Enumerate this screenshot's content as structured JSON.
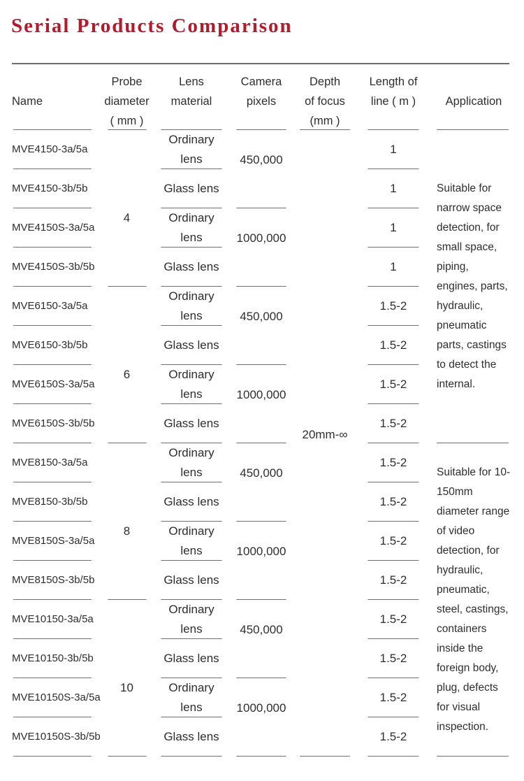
{
  "page": {
    "title": "Serial Products Comparison"
  },
  "colors": {
    "accent": "#b01c2c",
    "rule": "#6e6e6e",
    "text": "#2e2e2e"
  },
  "table": {
    "columns": {
      "name": {
        "header": "Name",
        "cells": [
          "MVE4150-3a/5a",
          "MVE4150-3b/5b",
          "MVE4150S-3a/5a",
          "MVE4150S-3b/5b",
          "MVE6150-3a/5a",
          "MVE6150-3b/5b",
          "MVE6150S-3a/5a",
          "MVE6150S-3b/5b",
          "MVE8150-3a/5a",
          "MVE8150-3b/5b",
          "MVE8150S-3a/5a",
          "MVE8150S-3b/5b",
          "MVE10150-3a/5a",
          "MVE10150-3b/5b",
          "MVE10150S-3a/5a",
          "MVE10150S-3b/5b"
        ]
      },
      "probe": {
        "header_lines": [
          "Probe",
          "diameter",
          "( mm )"
        ],
        "cells": [
          "4",
          "6",
          "8",
          "10"
        ]
      },
      "lens": {
        "header_lines": [
          "Lens",
          "material"
        ],
        "cells": [
          "Ordinary lens",
          "Glass lens",
          "Ordinary lens",
          "Glass lens",
          "Ordinary lens",
          "Glass lens",
          "Ordinary lens",
          "Glass lens",
          "Ordinary lens",
          "Glass lens",
          "Ordinary lens",
          "Glass lens",
          "Ordinary lens",
          "Glass lens",
          "Ordinary lens",
          "Glass lens"
        ]
      },
      "camera": {
        "header_lines": [
          "Camera",
          "pixels"
        ],
        "cells": [
          "450,000",
          "1000,000",
          "450,000",
          "1000,000",
          "450,000",
          "1000,000",
          "450,000",
          "1000,000"
        ]
      },
      "depth": {
        "header_lines": [
          "Depth",
          "of focus",
          "(mm )"
        ],
        "cells": [
          "20mm-∞"
        ]
      },
      "length": {
        "header_lines": [
          "Length of",
          "line ( m )"
        ],
        "cells": [
          "1",
          "1",
          "1",
          "1",
          "1.5-2",
          "1.5-2",
          "1.5-2",
          "1.5-2",
          "1.5-2",
          "1.5-2",
          "1.5-2",
          "1.5-2",
          "1.5-2",
          "1.5-2",
          "1.5-2",
          "1.5-2"
        ]
      },
      "application": {
        "header": "Application",
        "cells": [
          "Suitable for narrow space detection, for small space, piping, engines, parts, hydraulic, pneumatic parts, castings to detect the internal.",
          "Suitable for 10-150mm diameter range of video detection, for hydraulic, pneumatic, steel, castings, containers inside the foreign body, plug, defects for visual inspection."
        ]
      }
    }
  }
}
